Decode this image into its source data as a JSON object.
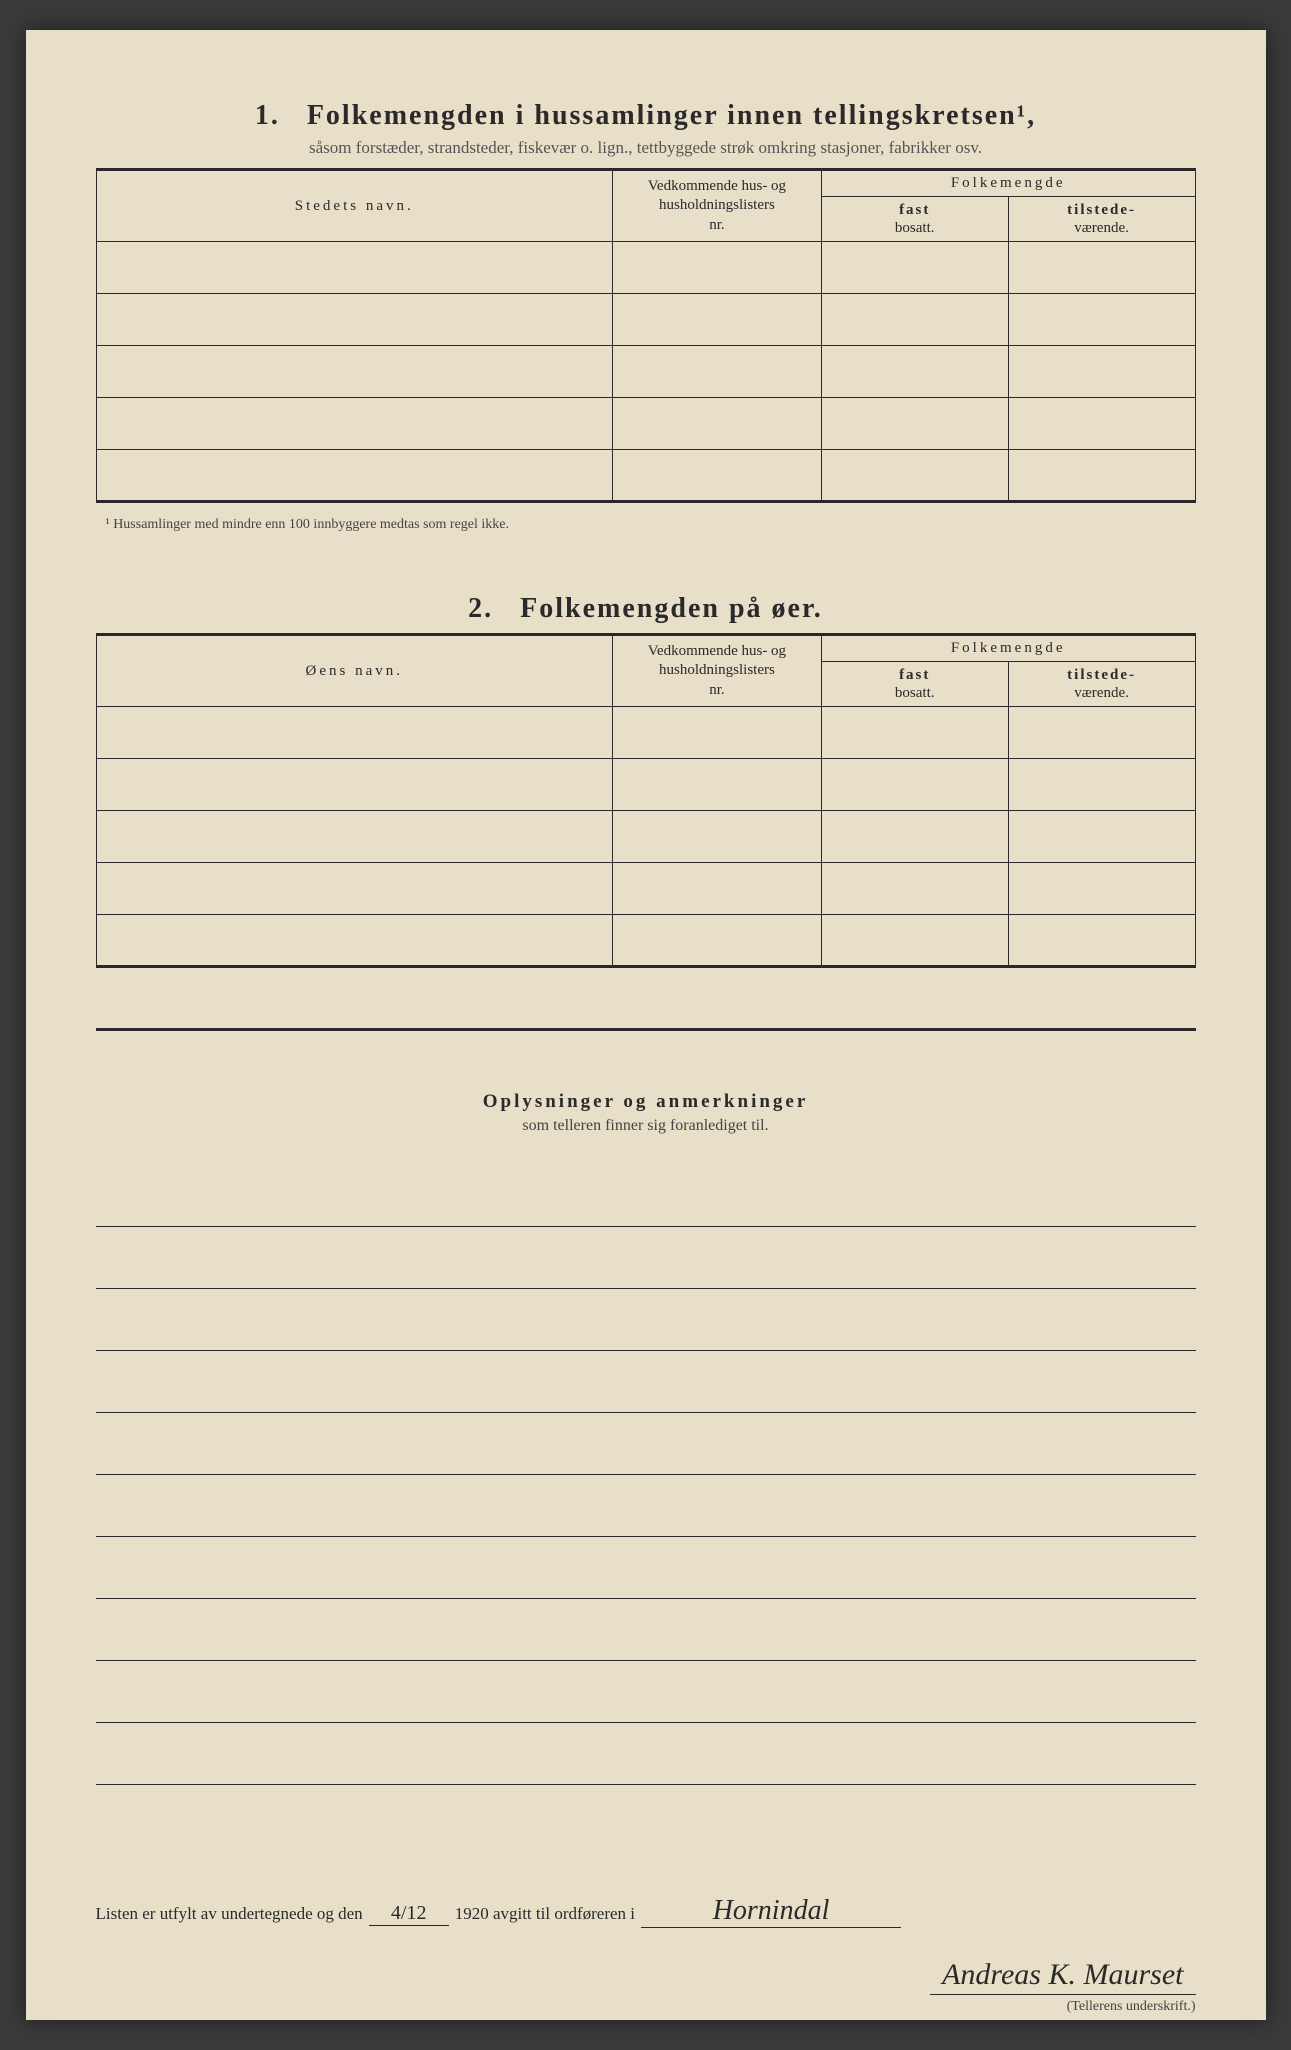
{
  "section1": {
    "number": "1.",
    "title": "Folkemengden i hussamlinger innen tellingskretsen¹,",
    "subtitle": "såsom forstæder, strandsteder, fiskevær o. lign., tettbyggede strøk omkring stasjoner, fabrikker osv.",
    "col_name": "Stedets navn.",
    "col_hus_l1": "Vedkommende hus- og",
    "col_hus_l2": "husholdningslisters",
    "col_hus_l3": "nr.",
    "col_folke": "Folkemengde",
    "sub_fast_b": "fast",
    "sub_fast": "bosatt.",
    "sub_tilst_b": "tilstede-",
    "sub_tilst": "værende.",
    "row_count": 5
  },
  "footnote": "¹  Hussamlinger med mindre enn 100 innbyggere medtas som regel ikke.",
  "section2": {
    "number": "2.",
    "title": "Folkemengden på øer.",
    "col_name": "Øens navn.",
    "col_hus_l1": "Vedkommende hus- og",
    "col_hus_l2": "husholdningslisters",
    "col_hus_l3": "nr.",
    "col_folke": "Folkemengde",
    "sub_fast_b": "fast",
    "sub_fast": "bosatt.",
    "sub_tilst_b": "tilstede-",
    "sub_tilst": "værende.",
    "row_count": 5
  },
  "oplysninger": {
    "title": "Oplysninger og anmerkninger",
    "subtitle": "som telleren finner sig foranlediget til.",
    "line_count": 10
  },
  "footer": {
    "text1": "Listen er utfylt av undertegnede og den",
    "date": "4/12",
    "text2": "1920 avgitt til ordføreren i",
    "place": "Hornindal",
    "signature": "Andreas K. Maurset",
    "sig_label": "(Tellerens underskrift.)"
  },
  "colors": {
    "paper": "#e8dfc8",
    "ink": "#2a2a2a",
    "faded": "#555"
  },
  "col_widths": {
    "name": "47%",
    "hus": "19%",
    "fast": "17%",
    "tilst": "17%"
  }
}
